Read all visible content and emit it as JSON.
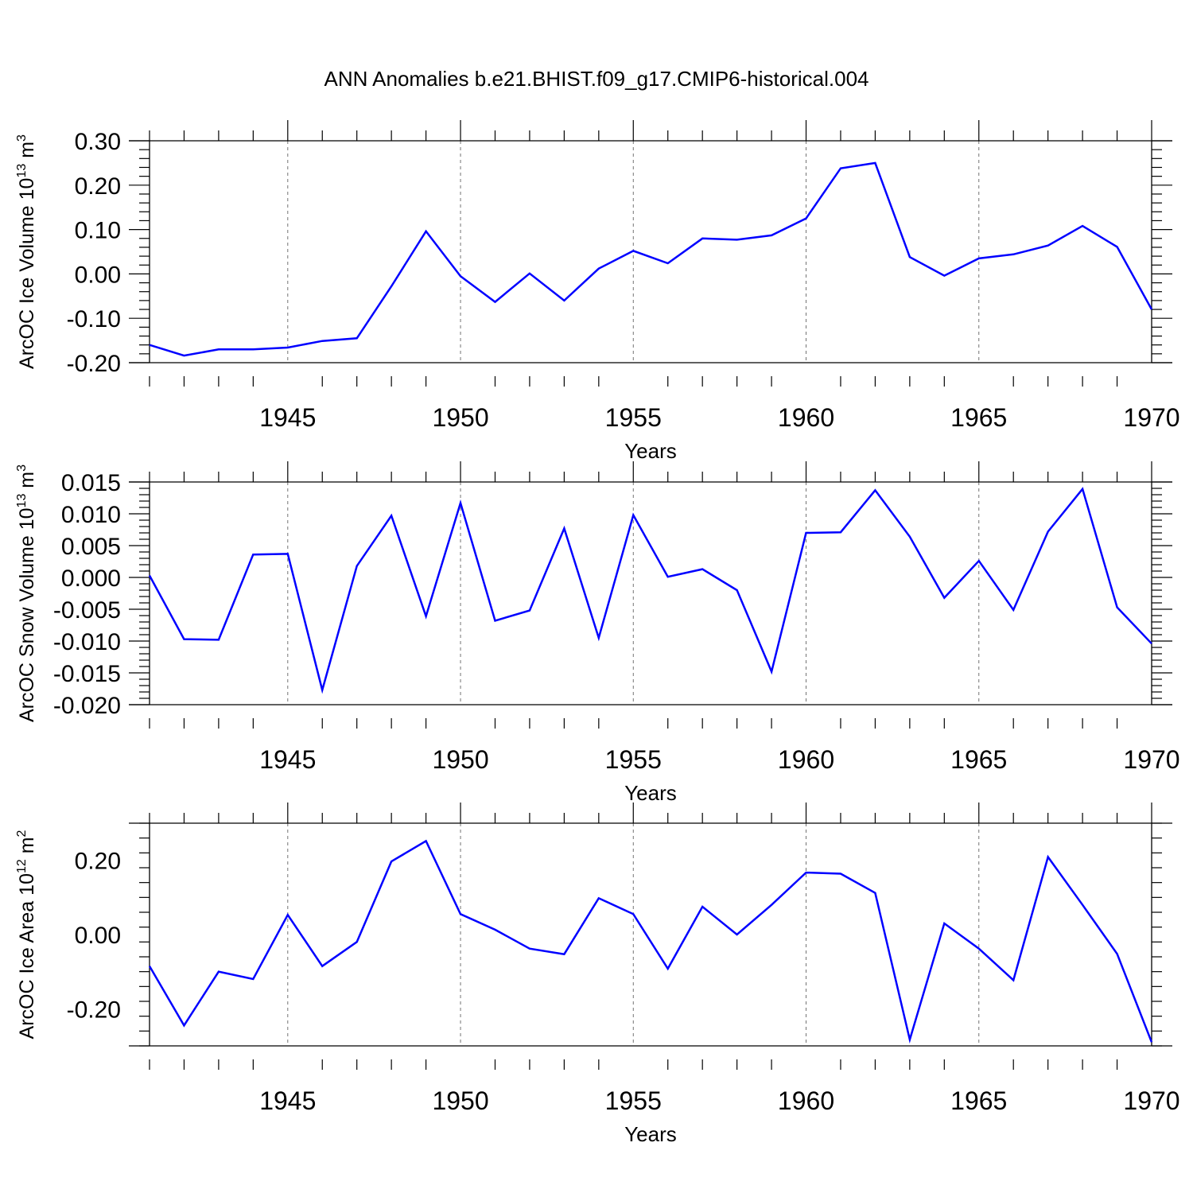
{
  "figure_title": "ANN Anomalies b.e21.BHIST.f09_g17.CMIP6-historical.004",
  "line_color": "#0000ff",
  "chart_data": [
    {
      "type": "line",
      "title": "ANN Anomalies b.e21.BHIST.f09_g17.CMIP6-historical.004",
      "ylabel_main": "ArcOC Ice Volume 10",
      "ylabel_exp": "13",
      "ylabel_unit": " m",
      "ylabel_unit_exp": "3",
      "xlabel": "Years",
      "ylim": [
        -0.2,
        0.3
      ],
      "yticks": [
        -0.2,
        -0.1,
        0.0,
        0.1,
        0.2,
        0.3
      ],
      "ytick_labels": [
        "-0.20",
        "-0.10",
        "0.00",
        "0.10",
        "0.20",
        "0.30"
      ],
      "xlim": [
        1941,
        1970
      ],
      "xticks": [
        1945,
        1950,
        1955,
        1960,
        1965,
        1970
      ],
      "xtick_labels": [
        "1945",
        "1950",
        "1955",
        "1960",
        "1965",
        "1970"
      ],
      "series": [
        {
          "name": "Ice Volume",
          "x": [
            1941,
            1942,
            1943,
            1944,
            1945,
            1946,
            1947,
            1948,
            1949,
            1950,
            1951,
            1952,
            1953,
            1954,
            1955,
            1956,
            1957,
            1958,
            1959,
            1960,
            1961,
            1962,
            1963,
            1964,
            1965,
            1966,
            1967,
            1968,
            1969,
            1970
          ],
          "values": [
            -0.16,
            -0.184,
            -0.17,
            -0.17,
            -0.166,
            -0.151,
            -0.145,
            -0.028,
            0.096,
            -0.005,
            -0.063,
            0.001,
            -0.06,
            0.012,
            0.052,
            0.024,
            0.08,
            0.077,
            0.087,
            0.125,
            0.238,
            0.25,
            0.038,
            -0.004,
            0.035,
            0.044,
            0.064,
            0.108,
            0.061,
            -0.08
          ]
        }
      ]
    },
    {
      "type": "line",
      "ylabel_main": "ArcOC Snow Volume 10",
      "ylabel_exp": "13",
      "ylabel_unit": " m",
      "ylabel_unit_exp": "3",
      "xlabel": "Years",
      "ylim": [
        -0.02,
        0.015
      ],
      "yticks": [
        -0.02,
        -0.015,
        -0.01,
        -0.005,
        0.0,
        0.005,
        0.01,
        0.015
      ],
      "ytick_labels": [
        "-0.020",
        "-0.015",
        "-0.010",
        "-0.005",
        "0.000",
        "0.005",
        "0.010",
        "0.015"
      ],
      "xlim": [
        1941,
        1970
      ],
      "xticks": [
        1945,
        1950,
        1955,
        1960,
        1965,
        1970
      ],
      "xtick_labels": [
        "1945",
        "1950",
        "1955",
        "1960",
        "1965",
        "1970"
      ],
      "series": [
        {
          "name": "Snow Volume",
          "x": [
            1941,
            1942,
            1943,
            1944,
            1945,
            1946,
            1947,
            1948,
            1949,
            1950,
            1951,
            1952,
            1953,
            1954,
            1955,
            1956,
            1957,
            1958,
            1959,
            1960,
            1961,
            1962,
            1963,
            1964,
            1965,
            1966,
            1967,
            1968,
            1969,
            1970
          ],
          "values": [
            0.0003,
            -0.0097,
            -0.0098,
            0.0036,
            0.0037,
            -0.0177,
            0.0018,
            0.0097,
            -0.0061,
            0.0117,
            -0.0068,
            -0.0052,
            0.0077,
            -0.0095,
            0.0098,
            0.0001,
            0.0013,
            -0.002,
            -0.0148,
            0.007,
            0.0071,
            0.0137,
            0.0064,
            -0.0032,
            0.0026,
            -0.0051,
            0.0072,
            0.0139,
            -0.0047,
            -0.0104
          ]
        }
      ]
    },
    {
      "type": "line",
      "ylabel_main": "ArcOC Ice Area 10",
      "ylabel_exp": "12",
      "ylabel_unit": " m",
      "ylabel_unit_exp": "2",
      "xlabel": "Years",
      "ylim": [
        -0.3,
        0.3
      ],
      "yticks": [
        -0.2,
        0.0,
        0.2
      ],
      "ytick_labels": [
        "-0.20",
        "0.00",
        "0.20"
      ],
      "xlim": [
        1941,
        1970
      ],
      "xticks": [
        1945,
        1950,
        1955,
        1960,
        1965,
        1970
      ],
      "xtick_labels": [
        "1945",
        "1950",
        "1955",
        "1960",
        "1965",
        "1970"
      ],
      "series": [
        {
          "name": "Ice Area",
          "x": [
            1941,
            1942,
            1943,
            1944,
            1945,
            1946,
            1947,
            1948,
            1949,
            1950,
            1951,
            1952,
            1953,
            1954,
            1955,
            1956,
            1957,
            1958,
            1959,
            1960,
            1961,
            1962,
            1963,
            1964,
            1965,
            1966,
            1967,
            1968,
            1969,
            1970
          ],
          "values": [
            -0.085,
            -0.245,
            -0.1,
            -0.12,
            0.053,
            -0.085,
            -0.02,
            0.197,
            0.252,
            0.055,
            0.013,
            -0.038,
            -0.053,
            0.098,
            0.055,
            -0.092,
            0.075,
            0.0,
            0.08,
            0.167,
            0.164,
            0.112,
            -0.283,
            0.03,
            -0.038,
            -0.123,
            0.209,
            0.08,
            -0.052,
            -0.29
          ]
        }
      ]
    }
  ]
}
